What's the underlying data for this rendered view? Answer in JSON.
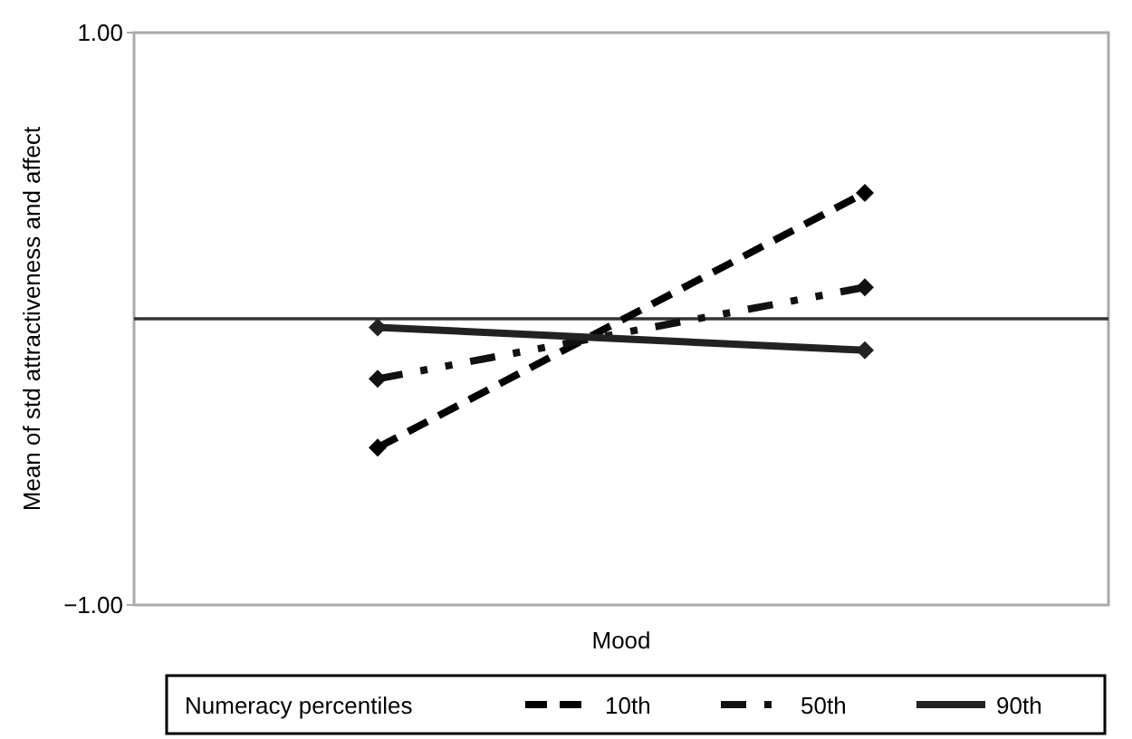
{
  "chart_data": {
    "type": "line",
    "xlabel": "Mood",
    "ylabel": "Mean of std attractiveness and affect",
    "legend_title": "Numeracy percentiles",
    "categories": [
      null,
      null
    ],
    "series": [
      {
        "name": "10th",
        "color": "#000000",
        "line_style": "dashed",
        "values": [
          -0.45,
          0.44
        ]
      },
      {
        "name": "50th",
        "color": "#111111",
        "line_style": "dotted",
        "values": [
          -0.21,
          0.11
        ]
      },
      {
        "name": "90th",
        "color": "#222222",
        "line_style": "solid",
        "values": [
          -0.03,
          -0.11
        ]
      }
    ],
    "ylim": [
      -1,
      1
    ],
    "yticks": [
      {
        "value": -1,
        "label": "−1.00"
      },
      {
        "value": 1,
        "label": "1.00"
      }
    ],
    "ref_lines": [
      {
        "axis": "y",
        "value": 0,
        "color": "#333333"
      }
    ],
    "marker": "diamond",
    "legend": "bottom",
    "grid": false
  }
}
